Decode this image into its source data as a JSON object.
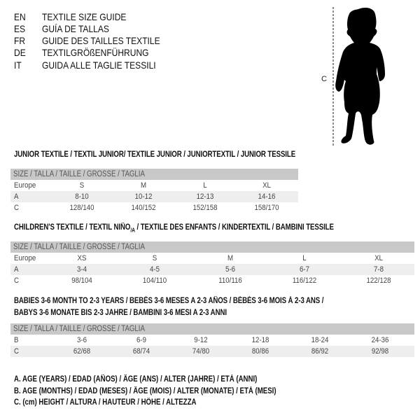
{
  "languages": [
    {
      "code": "EN",
      "title": "TEXTILE SIZE GUIDE"
    },
    {
      "code": "ES",
      "title": "GUÍA DE TALLAS"
    },
    {
      "code": "FR",
      "title": "GUIDE DES TAILLES TEXTILE"
    },
    {
      "code": "DE",
      "title": "TEXTILGRÖßENFÜHRUNG"
    },
    {
      "code": "IT",
      "title": "GUIDA ALLE TAGLIE TESSILI"
    }
  ],
  "figure": {
    "height_label": "C",
    "icon": "baby-silhouette"
  },
  "size_header": "SIZE / TALLA / TAILLE / GRÖSSE / TAGLIA",
  "junior": {
    "heading": "JUNIOR TEXTILE / TEXTIL JUNIOR/ TEXTILE JUNIOR / JUNIORTEXTIL / JUNIOR TESSILE",
    "rows": [
      {
        "label": "Europe",
        "cells": [
          "S",
          "M",
          "L",
          "XL"
        ]
      },
      {
        "label": "A",
        "cells": [
          "8-10",
          "10-12",
          "12-13",
          "14-16"
        ]
      },
      {
        "label": "C",
        "cells": [
          "128/140",
          "140/152",
          "152/158",
          "158/170"
        ]
      }
    ]
  },
  "children": {
    "heading_a": "CHILDREN'S TEXTILE / TEXTIL NIÑO",
    "heading_sub": "/A",
    "heading_b": " / TEXTILE DES ENFANTS / KINDERTEXTIL / BAMBINI TESSILE",
    "rows": [
      {
        "label": "Europe",
        "cells": [
          "XS",
          "S",
          "M",
          "L",
          "XL"
        ]
      },
      {
        "label": "A",
        "cells": [
          "3-4",
          "4-5",
          "5-6",
          "6-7",
          "7-8"
        ]
      },
      {
        "label": "C",
        "cells": [
          "98/104",
          "104/110",
          "110/116",
          "116/122",
          "122/128"
        ]
      }
    ]
  },
  "babies": {
    "heading_1": "BABIES 3-6 MONTH TO 2-3 YEARS / BEBÉS 3-6 MESES A 2-3 AÑOS / BÉBÉS 3-6 MOIS À 2-3 ANS /",
    "heading_2": "BABYS 3-6 MONATE BIS 2-3 JAHRE / BAMBINI 3-6 MESI A 2-3 ANNI",
    "rows": [
      {
        "label": "B",
        "cells": [
          "3-6",
          "6-9",
          "9-12",
          "12-18",
          "18-24",
          "24-36"
        ]
      },
      {
        "label": "C",
        "cells": [
          "62/68",
          "68/74",
          "74/80",
          "80/86",
          "86/92",
          "92/98"
        ]
      }
    ]
  },
  "legend": [
    "A. AGE (YEARS) / EDAD (AÑOS) / ÂGE (ANS) / ALTER (JAHRE) / ETÀ (ANNI)",
    "B. AGE (MONTHS) / EDAD (MESES) / ÂGE (MOIS) / ALTER (MONATE) / ETÀ (MESI)",
    "C. (cm) HEIGHT / ALTURA / HAUTEUR / HÖHE / ALTEZZA"
  ]
}
